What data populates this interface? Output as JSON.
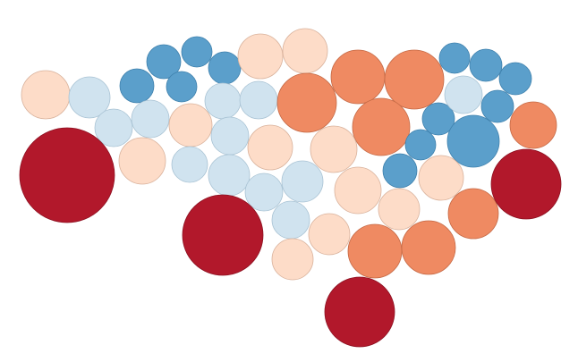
{
  "chart_data": {
    "type": "bubble-map",
    "title": "",
    "legend": null,
    "color_classes": {
      "dark-blue": "#5b9fcb",
      "light-blue": "#d0e3ef",
      "light-peach": "#fddcc8",
      "orange": "#ef8a62",
      "dark-red": "#b2182b"
    },
    "stroke_classes": {
      "dark-blue": "#3f81ad",
      "light-blue": "#a9c3d4",
      "light-peach": "#d9b29c",
      "orange": "#c56a46",
      "dark-red": "#8d1222"
    },
    "bubbles": [
      {
        "cls": "light-peach",
        "size": 2
      },
      {
        "cls": "light-blue",
        "size": 2
      },
      {
        "cls": "light-blue",
        "size": 2
      },
      {
        "cls": "dark-red",
        "size": 5
      },
      {
        "cls": "dark-blue",
        "size": 1
      },
      {
        "cls": "dark-blue",
        "size": 1
      },
      {
        "cls": "dark-blue",
        "size": 1
      },
      {
        "cls": "dark-blue",
        "size": 1
      },
      {
        "cls": "dark-blue",
        "size": 1
      },
      {
        "cls": "light-blue",
        "size": 2
      },
      {
        "cls": "light-peach",
        "size": 2
      },
      {
        "cls": "light-peach",
        "size": 2
      },
      {
        "cls": "light-blue",
        "size": 1
      },
      {
        "cls": "light-peach",
        "size": 2
      },
      {
        "cls": "light-peach",
        "size": 2
      },
      {
        "cls": "light-blue",
        "size": 1
      },
      {
        "cls": "light-blue",
        "size": 1
      },
      {
        "cls": "light-blue",
        "size": 1
      },
      {
        "cls": "light-blue",
        "size": 1
      },
      {
        "cls": "orange",
        "size": 3
      },
      {
        "cls": "light-peach",
        "size": 2
      },
      {
        "cls": "light-blue",
        "size": 1
      },
      {
        "cls": "light-blue",
        "size": 2
      },
      {
        "cls": "light-blue",
        "size": 1
      },
      {
        "cls": "dark-red",
        "size": 5
      },
      {
        "cls": "light-peach",
        "size": 2
      },
      {
        "cls": "light-peach",
        "size": 2
      },
      {
        "cls": "orange",
        "size": 3
      },
      {
        "cls": "orange",
        "size": 3
      },
      {
        "cls": "orange",
        "size": 3
      },
      {
        "cls": "light-peach",
        "size": 2
      },
      {
        "cls": "light-peach",
        "size": 2
      },
      {
        "cls": "orange",
        "size": 3
      },
      {
        "cls": "orange",
        "size": 3
      },
      {
        "cls": "dark-red",
        "size": 4
      },
      {
        "cls": "dark-blue",
        "size": 1
      },
      {
        "cls": "dark-blue",
        "size": 1
      },
      {
        "cls": "dark-blue",
        "size": 1
      },
      {
        "cls": "dark-blue",
        "size": 1
      },
      {
        "cls": "dark-blue",
        "size": 1
      },
      {
        "cls": "light-blue",
        "size": 2
      },
      {
        "cls": "dark-blue",
        "size": 1
      },
      {
        "cls": "dark-blue",
        "size": 1
      },
      {
        "cls": "dark-blue",
        "size": 1
      },
      {
        "cls": "orange",
        "size": 3
      },
      {
        "cls": "light-peach",
        "size": 2
      },
      {
        "cls": "light-peach",
        "size": 2
      },
      {
        "cls": "orange",
        "size": 3
      },
      {
        "cls": "dark-red",
        "size": 4
      }
    ]
  }
}
